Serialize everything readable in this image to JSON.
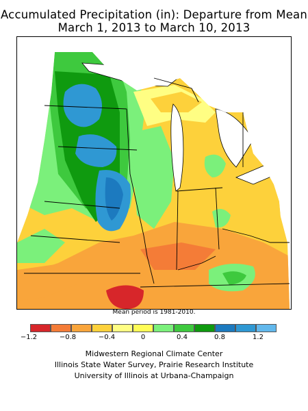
{
  "title_line1": "Accumulated Precipitation (in): Departure from Mean",
  "title_line2": "March 1, 2013 to March 10, 2013",
  "mean_period": "Mean period is 1981-2010.",
  "legend": {
    "colors": [
      "#d7262a",
      "#f47c37",
      "#f9a53b",
      "#fdd13b",
      "#fffe83",
      "#fffd56",
      "#7bf07b",
      "#3ec93e",
      "#0f9a0f",
      "#1c7abf",
      "#2f98d3",
      "#62b8ec"
    ],
    "ticks": [
      "−1.2",
      "−0.8",
      "−0.4",
      "0",
      "0.4",
      "0.8",
      "1.2"
    ]
  },
  "credits": [
    "Midwestern Regional Climate Center",
    "Illinois State Water Survey, Prairie Research Institute",
    "University of Illinois at Urbana-Champaign"
  ]
}
